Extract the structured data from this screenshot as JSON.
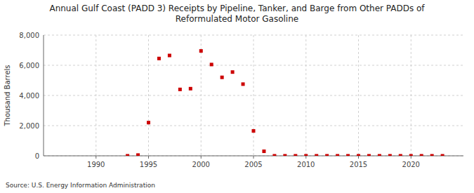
{
  "chart_data": {
    "type": "scatter",
    "title": "Annual Gulf Coast (PADD 3) Receipts by Pipeline, Tanker, and Barge from Other PADDs of\nReformulated Motor Gasoline",
    "ylabel": "Thousand Barrels",
    "source": "Source: U.S. Energy Information Administration",
    "x": [
      1993,
      1994,
      1995,
      1996,
      1997,
      1998,
      1999,
      2000,
      2001,
      2002,
      2003,
      2004,
      2005,
      2006,
      2007,
      2008,
      2009,
      2010,
      2011,
      2012,
      2013,
      2014,
      2015,
      2016,
      2017,
      2018,
      2019,
      2020,
      2021,
      2022,
      2023
    ],
    "values": [
      0,
      50,
      2200,
      6450,
      6650,
      4400,
      4450,
      6950,
      6050,
      5200,
      5550,
      4750,
      1650,
      300,
      0,
      0,
      0,
      0,
      0,
      0,
      0,
      0,
      0,
      0,
      0,
      0,
      0,
      0,
      0,
      0,
      0
    ],
    "color": "#cc0000",
    "marker": "square",
    "xlim": [
      1985,
      2025
    ],
    "ylim": [
      0,
      8000
    ],
    "xticks": [
      1990,
      1995,
      2000,
      2005,
      2010,
      2015,
      2020
    ],
    "yticks": [
      0,
      {
        "value": 2000,
        "label": "2,000"
      },
      {
        "value": 4000,
        "label": "4,000"
      },
      {
        "value": 6000,
        "label": "6,000"
      },
      {
        "value": 8000,
        "label": "8,000"
      }
    ],
    "grid": true
  }
}
